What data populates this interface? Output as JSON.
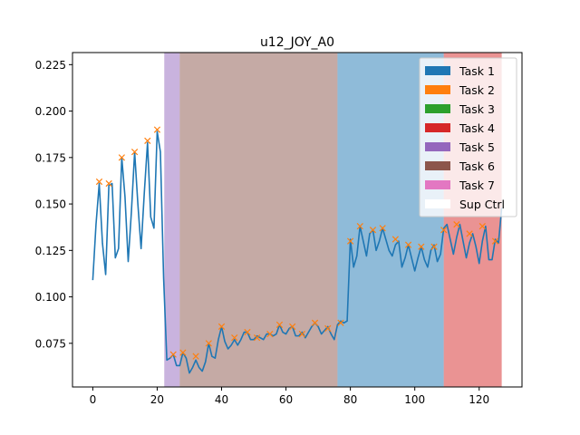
{
  "chart_data": {
    "type": "line",
    "title": "u12_JOY_A0",
    "xlabel": "",
    "ylabel": "",
    "xlim": [
      -6.3,
      133.3
    ],
    "ylim": [
      0.0515,
      0.2315
    ],
    "x_ticks": [
      0,
      20,
      40,
      60,
      80,
      100,
      120
    ],
    "x_tick_labels": [
      "0",
      "20",
      "40",
      "60",
      "80",
      "100",
      "120"
    ],
    "y_ticks": [
      0.075,
      0.1,
      0.125,
      0.15,
      0.175,
      0.2,
      0.225
    ],
    "y_tick_labels": [
      "0.075",
      "0.100",
      "0.125",
      "0.150",
      "0.175",
      "0.200",
      "0.225"
    ],
    "grid": false,
    "legend_position": "top-right",
    "legend": [
      {
        "label": "Task 1",
        "color": "#1f77b4"
      },
      {
        "label": "Task 2",
        "color": "#ff7f0e"
      },
      {
        "label": "Task 3",
        "color": "#2ca02c"
      },
      {
        "label": "Task 4",
        "color": "#d62728"
      },
      {
        "label": "Task 5",
        "color": "#9467bd"
      },
      {
        "label": "Task 6",
        "color": "#8c564b"
      },
      {
        "label": "Task 7",
        "color": "#e377c2"
      },
      {
        "label": "Sup Ctrl",
        "color": "#ffffff"
      }
    ],
    "task_spans": [
      {
        "task": "Task 5",
        "start": 22.2,
        "end": 27.0,
        "color": "#9467bd",
        "alpha": 0.5
      },
      {
        "task": "Task 6",
        "start": 27.0,
        "end": 76.0,
        "color": "#8c564b",
        "alpha": 0.5
      },
      {
        "task": "Task 1",
        "start": 76.0,
        "end": 109.0,
        "color": "#1f77b4",
        "alpha": 0.5
      },
      {
        "task": "Task 4",
        "start": 109.0,
        "end": 127.0,
        "color": "#d62728",
        "alpha": 0.5
      }
    ],
    "series": [
      {
        "color": "#1f77b4",
        "points": [
          [
            0,
            0.109
          ],
          [
            1,
            0.139
          ],
          [
            2,
            0.161
          ],
          [
            3,
            0.129
          ],
          [
            4,
            0.112
          ],
          [
            5,
            0.16
          ],
          [
            6,
            0.161
          ],
          [
            7,
            0.121
          ],
          [
            8,
            0.126
          ],
          [
            9,
            0.175
          ],
          [
            10,
            0.154
          ],
          [
            11,
            0.119
          ],
          [
            12,
            0.146
          ],
          [
            13,
            0.178
          ],
          [
            14,
            0.15
          ],
          [
            15,
            0.126
          ],
          [
            16,
            0.156
          ],
          [
            17,
            0.183
          ],
          [
            18,
            0.143
          ],
          [
            19,
            0.137
          ],
          [
            20,
            0.189
          ],
          [
            21,
            0.178
          ],
          [
            22,
            0.11
          ],
          [
            23,
            0.066
          ],
          [
            24,
            0.067
          ],
          [
            25,
            0.069
          ],
          [
            26,
            0.063
          ],
          [
            27,
            0.063
          ],
          [
            28,
            0.07
          ],
          [
            29,
            0.067
          ],
          [
            30,
            0.059
          ],
          [
            31,
            0.062
          ],
          [
            32,
            0.066
          ],
          [
            33,
            0.062
          ],
          [
            34,
            0.06
          ],
          [
            35,
            0.065
          ],
          [
            36,
            0.075
          ],
          [
            37,
            0.068
          ],
          [
            38,
            0.067
          ],
          [
            39,
            0.077
          ],
          [
            40,
            0.084
          ],
          [
            41,
            0.076
          ],
          [
            42,
            0.072
          ],
          [
            43,
            0.074
          ],
          [
            44,
            0.077
          ],
          [
            45,
            0.074
          ],
          [
            46,
            0.077
          ],
          [
            47,
            0.081
          ],
          [
            48,
            0.081
          ],
          [
            49,
            0.077
          ],
          [
            50,
            0.077
          ],
          [
            51,
            0.079
          ],
          [
            52,
            0.078
          ],
          [
            53,
            0.077
          ],
          [
            54,
            0.08
          ],
          [
            55,
            0.08
          ],
          [
            56,
            0.079
          ],
          [
            57,
            0.08
          ],
          [
            58,
            0.085
          ],
          [
            59,
            0.081
          ],
          [
            60,
            0.08
          ],
          [
            61,
            0.083
          ],
          [
            62,
            0.084
          ],
          [
            63,
            0.079
          ],
          [
            64,
            0.079
          ],
          [
            65,
            0.081
          ],
          [
            66,
            0.078
          ],
          [
            67,
            0.081
          ],
          [
            68,
            0.084
          ],
          [
            69,
            0.086
          ],
          [
            70,
            0.084
          ],
          [
            71,
            0.08
          ],
          [
            72,
            0.082
          ],
          [
            73,
            0.084
          ],
          [
            74,
            0.08
          ],
          [
            75,
            0.077
          ],
          [
            76,
            0.085
          ],
          [
            77,
            0.087
          ],
          [
            78,
            0.086
          ],
          [
            79,
            0.087
          ],
          [
            80,
            0.131
          ],
          [
            81,
            0.116
          ],
          [
            82,
            0.122
          ],
          [
            83,
            0.138
          ],
          [
            84,
            0.13
          ],
          [
            85,
            0.122
          ],
          [
            86,
            0.134
          ],
          [
            87,
            0.136
          ],
          [
            88,
            0.125
          ],
          [
            89,
            0.13
          ],
          [
            90,
            0.137
          ],
          [
            91,
            0.131
          ],
          [
            92,
            0.125
          ],
          [
            93,
            0.122
          ],
          [
            94,
            0.128
          ],
          [
            95,
            0.13
          ],
          [
            96,
            0.116
          ],
          [
            97,
            0.121
          ],
          [
            98,
            0.128
          ],
          [
            99,
            0.121
          ],
          [
            100,
            0.114
          ],
          [
            101,
            0.121
          ],
          [
            102,
            0.127
          ],
          [
            103,
            0.12
          ],
          [
            104,
            0.116
          ],
          [
            105,
            0.125
          ],
          [
            106,
            0.128
          ],
          [
            107,
            0.119
          ],
          [
            108,
            0.123
          ],
          [
            109,
            0.137
          ],
          [
            110,
            0.139
          ],
          [
            111,
            0.131
          ],
          [
            112,
            0.123
          ],
          [
            113,
            0.132
          ],
          [
            114,
            0.139
          ],
          [
            115,
            0.13
          ],
          [
            116,
            0.121
          ],
          [
            117,
            0.129
          ],
          [
            118,
            0.134
          ],
          [
            119,
            0.127
          ],
          [
            120,
            0.118
          ],
          [
            121,
            0.13
          ],
          [
            122,
            0.138
          ],
          [
            123,
            0.12
          ],
          [
            124,
            0.12
          ],
          [
            125,
            0.131
          ],
          [
            126,
            0.129
          ],
          [
            127,
            0.148
          ]
        ]
      }
    ],
    "peak_markers": {
      "color": "#ff7f0e",
      "marker": "x",
      "points": [
        [
          2,
          0.162
        ],
        [
          5,
          0.161
        ],
        [
          9,
          0.175
        ],
        [
          13,
          0.178
        ],
        [
          17,
          0.184
        ],
        [
          20,
          0.19
        ],
        [
          25,
          0.069
        ],
        [
          28,
          0.07
        ],
        [
          32,
          0.068
        ],
        [
          36,
          0.075
        ],
        [
          40,
          0.084
        ],
        [
          44,
          0.078
        ],
        [
          48,
          0.081
        ],
        [
          51,
          0.078
        ],
        [
          55,
          0.08
        ],
        [
          58,
          0.085
        ],
        [
          62,
          0.084
        ],
        [
          65,
          0.08
        ],
        [
          69,
          0.086
        ],
        [
          73,
          0.083
        ],
        [
          77,
          0.086
        ],
        [
          80,
          0.13
        ],
        [
          83,
          0.138
        ],
        [
          87,
          0.136
        ],
        [
          90,
          0.137
        ],
        [
          94,
          0.131
        ],
        [
          98,
          0.128
        ],
        [
          102,
          0.127
        ],
        [
          106,
          0.127
        ],
        [
          109,
          0.136
        ],
        [
          113,
          0.139
        ],
        [
          117,
          0.134
        ],
        [
          121,
          0.138
        ],
        [
          125,
          0.13
        ]
      ]
    }
  }
}
